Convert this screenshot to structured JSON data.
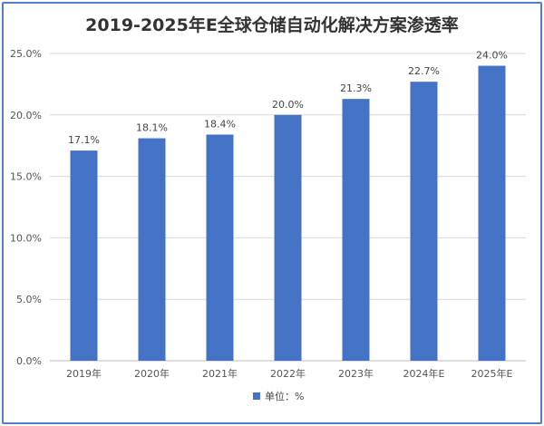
{
  "chart_data": {
    "type": "bar",
    "title": "2019-2025年E全球仓储自动化解决方案渗透率",
    "categories": [
      "2019年",
      "2020年",
      "2021年",
      "2022年",
      "2023年",
      "2024年E",
      "2025年E"
    ],
    "series": [
      {
        "name": "单位：%",
        "values": [
          17.1,
          18.1,
          18.4,
          20.0,
          21.3,
          22.7,
          24.0
        ]
      }
    ],
    "data_labels": [
      "17.1%",
      "18.1%",
      "18.4%",
      "20.0%",
      "21.3%",
      "22.7%",
      "24.0%"
    ],
    "yticks": [
      "0.0%",
      "5.0%",
      "10.0%",
      "15.0%",
      "20.0%",
      "25.0%"
    ],
    "ylim": [
      0,
      25
    ],
    "xlabel": "",
    "ylabel": "",
    "grid": true,
    "legend": "bottom",
    "colors": {
      "bar": "#4472c4",
      "border": "#4f7fc6",
      "grid": "#d9d9d9"
    }
  }
}
